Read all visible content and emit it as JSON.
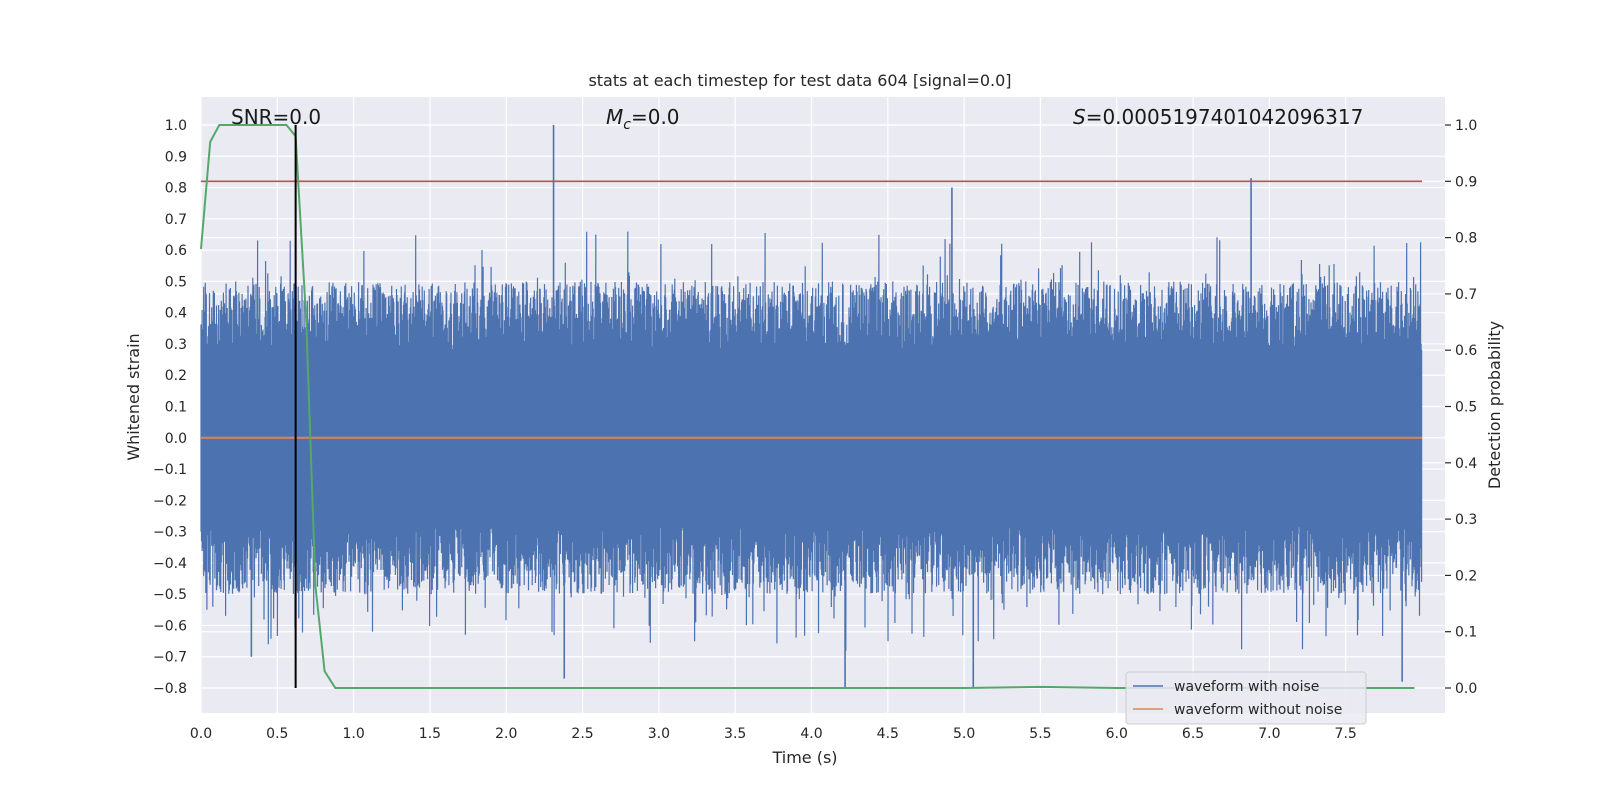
{
  "chart_data": {
    "type": "line",
    "title": "stats at each timestep for test data 604 [signal=0.0]",
    "xlabel": "Time (s)",
    "ylabel": "Whitened strain",
    "ylabel_right": "Detection probability",
    "xlim": [
      0.0,
      8.0
    ],
    "ylim": [
      -0.85,
      1.08
    ],
    "ylim_right": [
      -0.05,
      1.03
    ],
    "x_ticks": [
      "0.0",
      "0.5",
      "1.0",
      "1.5",
      "2.0",
      "2.5",
      "3.0",
      "3.5",
      "4.0",
      "4.5",
      "5.0",
      "5.5",
      "6.0",
      "6.5",
      "7.0",
      "7.5"
    ],
    "y_ticks": [
      "1.0",
      "0.9",
      "0.8",
      "0.7",
      "0.6",
      "0.5",
      "0.4",
      "0.3",
      "0.2",
      "0.1",
      "0.0",
      "−0.1",
      "−0.2",
      "−0.3",
      "−0.4",
      "−0.5",
      "−0.6",
      "−0.7",
      "−0.8"
    ],
    "y_ticks_right": [
      "1.0",
      "0.9",
      "0.8",
      "0.7",
      "0.6",
      "0.5",
      "0.4",
      "0.3",
      "0.2",
      "0.1",
      "0.0"
    ],
    "annotations": {
      "snr": "SNR=0.0",
      "mc_symbol": "M",
      "mc_sub": "c",
      "mc_value": "=0.0",
      "s_symbol": "S",
      "s_value": "=0.0005197401042096317"
    },
    "legend": {
      "position": "lower-right",
      "entries": [
        {
          "label": "waveform with noise",
          "color": "#4c72b0"
        },
        {
          "label": "waveform without noise",
          "color": "#dd8452"
        }
      ]
    },
    "colors": {
      "noise": "#4c72b0",
      "clean": "#dd8452",
      "probability": "#55a868",
      "threshold": "#c44e52",
      "marker": "#000000",
      "plot_bg": "#eaeaf2"
    },
    "series": [
      {
        "name": "waveform with noise",
        "kind": "noise",
        "seed": 604,
        "band": [
          0.28,
          -0.28
        ],
        "spikes": [
          {
            "x": 2.31,
            "y": 1.0
          },
          {
            "x": 4.92,
            "y": 0.8
          },
          {
            "x": 6.88,
            "y": 0.83
          },
          {
            "x": 4.22,
            "y": -0.8
          },
          {
            "x": 5.06,
            "y": -0.8
          },
          {
            "x": 7.87,
            "y": -0.78
          },
          {
            "x": 2.38,
            "y": -0.77
          },
          {
            "x": 0.33,
            "y": -0.7
          }
        ]
      },
      {
        "name": "waveform without noise",
        "kind": "line",
        "x": [
          0.0,
          8.0
        ],
        "y": [
          0.0,
          0.0
        ]
      },
      {
        "name": "detection probability",
        "axis": "right",
        "x": [
          0.0,
          0.06,
          0.12,
          0.19,
          0.25,
          0.31,
          0.38,
          0.44,
          0.5,
          0.56,
          0.62,
          0.69,
          0.75,
          0.81,
          0.88,
          1.0,
          2.0,
          3.0,
          4.0,
          5.0,
          5.5,
          6.0,
          7.0,
          7.95
        ],
        "y": [
          0.78,
          0.97,
          1.0,
          1.0,
          1.0,
          1.0,
          1.0,
          1.0,
          1.0,
          1.0,
          0.98,
          0.65,
          0.18,
          0.03,
          0.0,
          0.0,
          0.0,
          0.0,
          0.0,
          0.0,
          0.002,
          0.0,
          0.0,
          0.0
        ]
      },
      {
        "name": "threshold",
        "axis": "right",
        "x": [
          0.0,
          8.0
        ],
        "y": [
          0.9,
          0.9
        ]
      },
      {
        "name": "marker",
        "x": [
          0.62,
          0.62
        ],
        "y": [
          1.0,
          -0.8
        ]
      }
    ]
  }
}
